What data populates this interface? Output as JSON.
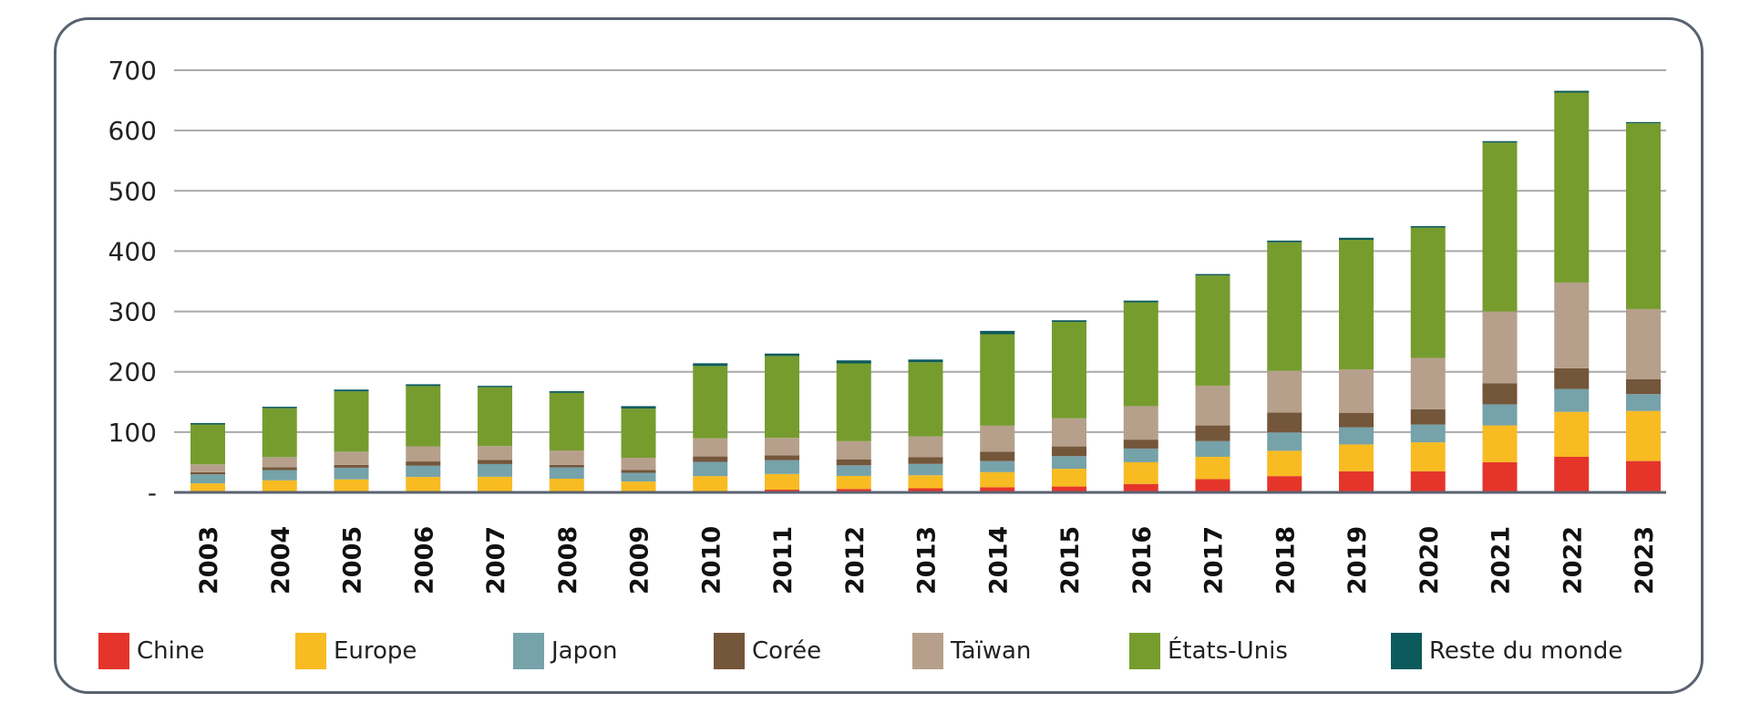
{
  "chart_data": {
    "type": "bar",
    "stacked": true,
    "categories": [
      "2003",
      "2004",
      "2005",
      "2006",
      "2007",
      "2008",
      "2009",
      "2010",
      "2011",
      "2012",
      "2013",
      "2014",
      "2015",
      "2016",
      "2017",
      "2018",
      "2019",
      "2020",
      "2021",
      "2022",
      "2023"
    ],
    "ylim": [
      0,
      700
    ],
    "yticks": [
      0,
      100,
      200,
      300,
      400,
      500,
      600,
      700
    ],
    "ytick_labels": [
      "-",
      "100",
      "200",
      "300",
      "400",
      "500",
      "600",
      "700"
    ],
    "grid": true,
    "legend_position": "bottom",
    "series": [
      {
        "name": "Chine",
        "color": "#e5352b",
        "values": [
          1,
          1,
          1,
          1,
          1,
          1,
          1,
          2,
          4.5,
          5.7,
          6.8,
          8.5,
          9.7,
          14,
          22,
          27,
          35,
          35,
          50,
          59,
          52
        ]
      },
      {
        "name": "Europe",
        "color": "#f8bb22",
        "values": [
          14,
          19,
          20.6,
          24.6,
          25,
          21.7,
          17,
          25,
          26,
          21.6,
          21.6,
          25,
          29.5,
          36,
          37,
          42,
          44.5,
          48,
          61,
          74.5,
          83
        ]
      },
      {
        "name": "Japon",
        "color": "#76a2a9",
        "values": [
          15,
          17,
          19.4,
          18.7,
          21,
          18.8,
          14.4,
          23.6,
          23,
          17.6,
          18.8,
          18.5,
          21,
          22.7,
          26,
          30.4,
          28.5,
          29.5,
          35,
          38,
          28
        ]
      },
      {
        "name": "Corée",
        "color": "#74563a",
        "values": [
          3.5,
          4.5,
          4.5,
          7,
          7,
          4,
          4.6,
          9,
          8,
          10,
          11,
          15.6,
          16,
          14.8,
          26,
          33,
          24,
          25.5,
          34.7,
          34.4,
          24.5
        ]
      },
      {
        "name": "Taïwan",
        "color": "#b6a08b",
        "values": [
          13,
          17,
          22,
          25,
          22.7,
          24,
          20.4,
          30,
          29,
          30,
          34.6,
          43,
          46.7,
          55.5,
          66,
          69.3,
          72,
          85,
          119.3,
          142,
          116.5
        ]
      },
      {
        "name": "États-Unis",
        "color": "#769c2e",
        "values": [
          66,
          81,
          100,
          100,
          97.7,
          95.5,
          81.6,
          120,
          135.7,
          129,
          123,
          151.7,
          159.7,
          172,
          182.7,
          213,
          214.8,
          216,
          280,
          315,
          308
        ]
      },
      {
        "name": "Reste du monde",
        "color": "#0d5a5c",
        "values": [
          2.5,
          2.5,
          3,
          3,
          2.3,
          2.8,
          4,
          4.5,
          4,
          5,
          4.5,
          5.5,
          2.8,
          3,
          2.3,
          2.8,
          3.4,
          2.5,
          2.4,
          3,
          2
        ]
      }
    ]
  }
}
